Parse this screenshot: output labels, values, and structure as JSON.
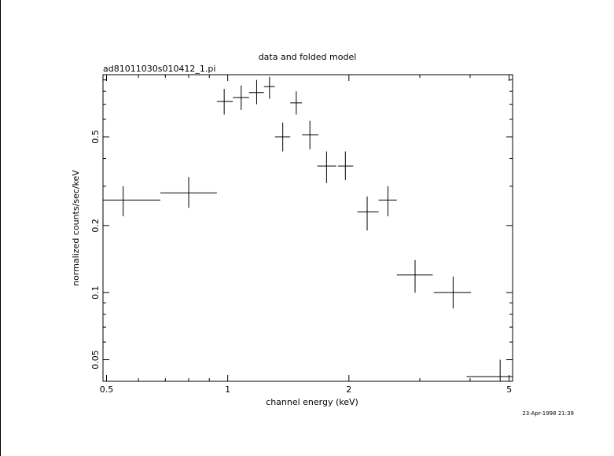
{
  "chart_data": {
    "type": "scatter",
    "title": "data and folded model",
    "subtitle": "ad81011030s010412_1.pi",
    "xlabel": "channel energy (keV)",
    "ylabel": "normalized counts/sec/keV",
    "timestamp": "23-Apr-1998 21:39",
    "x_scale": "log",
    "y_scale": "log",
    "xlim": [
      0.49,
      5.1
    ],
    "ylim": [
      0.04,
      0.95
    ],
    "grid": false,
    "x_ticks": [
      {
        "value": 0.5,
        "label": "0.5"
      },
      {
        "value": 1,
        "label": "1"
      },
      {
        "value": 2,
        "label": "2"
      },
      {
        "value": 5,
        "label": "5"
      }
    ],
    "y_ticks": [
      {
        "value": 0.05,
        "label": "0.05"
      },
      {
        "value": 0.1,
        "label": "0.1"
      },
      {
        "value": 0.2,
        "label": "0.2"
      },
      {
        "value": 0.5,
        "label": "0.5"
      }
    ],
    "series": [
      {
        "points": [
          {
            "x": 0.55,
            "xlo": 0.49,
            "xhi": 0.68,
            "y": 0.26,
            "ylo": 0.22,
            "yhi": 0.3
          },
          {
            "x": 0.8,
            "xlo": 0.68,
            "xhi": 0.94,
            "y": 0.28,
            "ylo": 0.24,
            "yhi": 0.33
          },
          {
            "x": 0.98,
            "xlo": 0.94,
            "xhi": 1.03,
            "y": 0.72,
            "ylo": 0.63,
            "yhi": 0.82
          },
          {
            "x": 1.08,
            "xlo": 1.03,
            "xhi": 1.13,
            "y": 0.75,
            "ylo": 0.66,
            "yhi": 0.85
          },
          {
            "x": 1.18,
            "xlo": 1.13,
            "xhi": 1.23,
            "y": 0.79,
            "ylo": 0.7,
            "yhi": 0.9
          },
          {
            "x": 1.27,
            "xlo": 1.23,
            "xhi": 1.31,
            "y": 0.84,
            "ylo": 0.74,
            "yhi": 0.93
          },
          {
            "x": 1.37,
            "xlo": 1.31,
            "xhi": 1.43,
            "y": 0.5,
            "ylo": 0.43,
            "yhi": 0.58
          },
          {
            "x": 1.48,
            "xlo": 1.43,
            "xhi": 1.53,
            "y": 0.71,
            "ylo": 0.63,
            "yhi": 0.8
          },
          {
            "x": 1.6,
            "xlo": 1.53,
            "xhi": 1.68,
            "y": 0.51,
            "ylo": 0.44,
            "yhi": 0.59
          },
          {
            "x": 1.76,
            "xlo": 1.67,
            "xhi": 1.86,
            "y": 0.37,
            "ylo": 0.31,
            "yhi": 0.43
          },
          {
            "x": 1.96,
            "xlo": 1.88,
            "xhi": 2.05,
            "y": 0.37,
            "ylo": 0.32,
            "yhi": 0.43
          },
          {
            "x": 2.22,
            "xlo": 2.1,
            "xhi": 2.37,
            "y": 0.23,
            "ylo": 0.19,
            "yhi": 0.27
          },
          {
            "x": 2.5,
            "xlo": 2.37,
            "xhi": 2.63,
            "y": 0.26,
            "ylo": 0.22,
            "yhi": 0.3
          },
          {
            "x": 2.92,
            "xlo": 2.63,
            "xhi": 3.23,
            "y": 0.12,
            "ylo": 0.1,
            "yhi": 0.14
          },
          {
            "x": 3.63,
            "xlo": 3.25,
            "xhi": 4.02,
            "y": 0.1,
            "ylo": 0.085,
            "yhi": 0.118
          },
          {
            "x": 4.75,
            "xlo": 3.92,
            "xhi": 5.1,
            "y": 0.042,
            "ylo": 0.035,
            "yhi": 0.05
          }
        ]
      }
    ]
  }
}
